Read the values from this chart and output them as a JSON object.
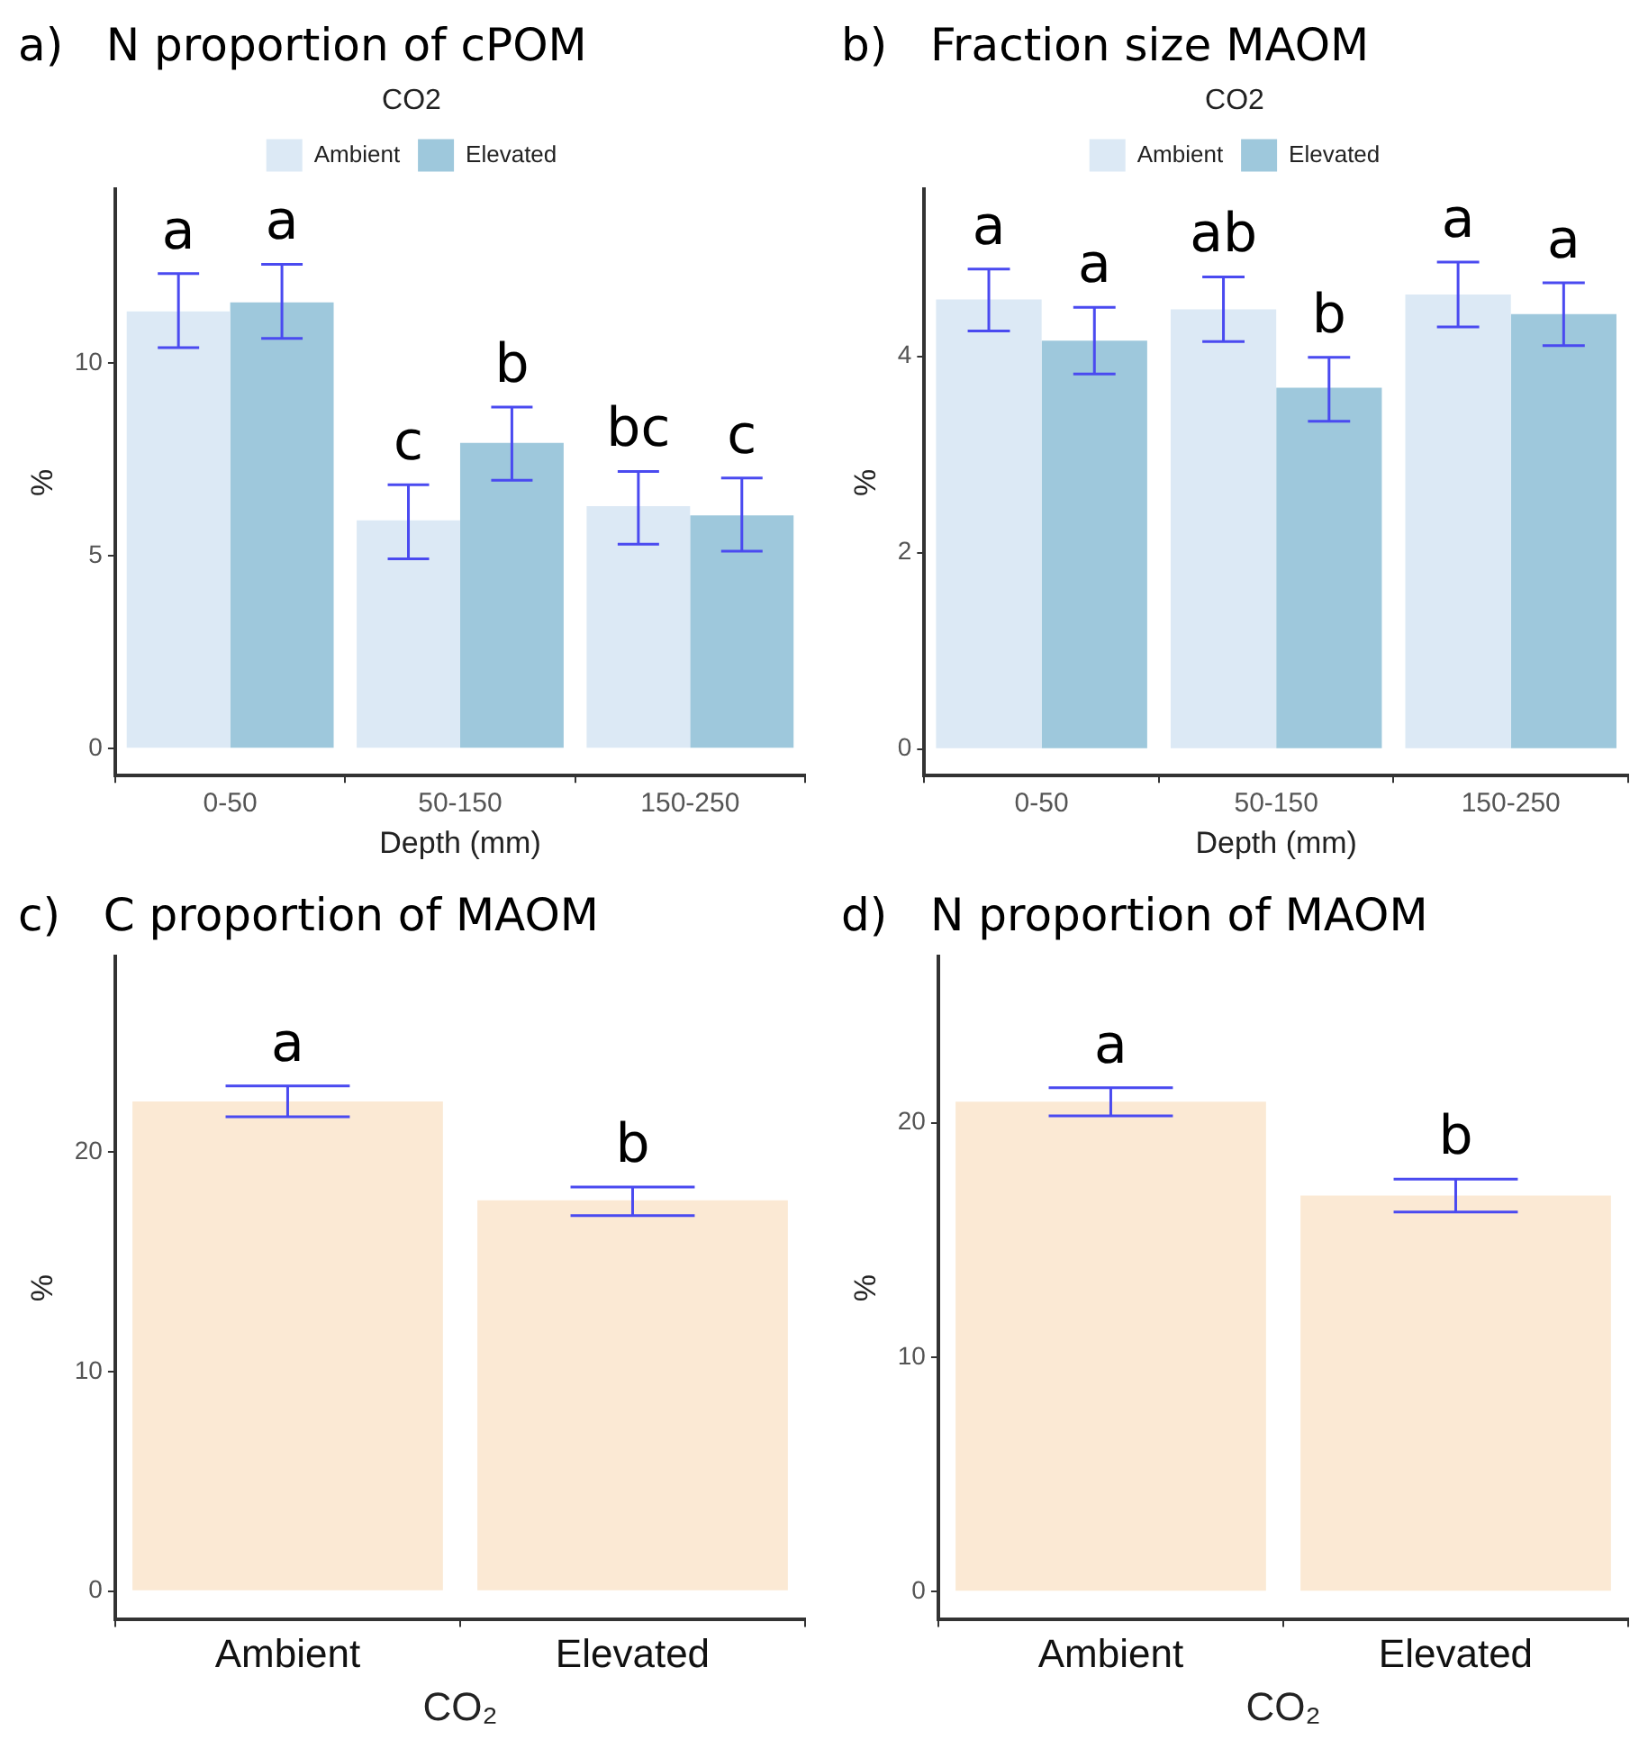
{
  "chart_data": [
    {
      "type": "bar",
      "title": "a)   N proportion of cPOM",
      "xlabel": "Depth (mm)",
      "ylabel": "%",
      "legend_title": "CO2",
      "legend": "top",
      "categories": [
        "0-50",
        "50-150",
        "150-250"
      ],
      "series": [
        {
          "name": "Ambient",
          "color": "#dce9f5",
          "values": [
            11.34,
            5.92,
            6.29
          ],
          "errors": [
            [
              10.4,
              12.32
            ],
            [
              4.92,
              6.84
            ],
            [
              5.3,
              7.19
            ]
          ]
        },
        {
          "name": "Elevated",
          "color": "#9ec8dc",
          "values": [
            11.57,
            7.93,
            6.05
          ],
          "errors": [
            [
              10.64,
              12.56
            ],
            [
              6.96,
              8.86
            ],
            [
              5.12,
              7.02
            ]
          ]
        }
      ],
      "ylim": [
        -0.7,
        14.5
      ],
      "yticks": [
        0,
        5,
        10
      ],
      "annotations": [
        "a",
        "a",
        "c",
        "b",
        "bc",
        "c"
      ]
    },
    {
      "type": "bar",
      "title": "b)   Fraction size MAOM",
      "xlabel": "Depth (mm)",
      "ylabel": "%",
      "legend_title": "CO2",
      "legend": "top",
      "categories": [
        "0-50",
        "50-150",
        "150-250"
      ],
      "series": [
        {
          "name": "Ambient",
          "color": "#dce9f5",
          "values": [
            4.58,
            4.48,
            4.63
          ],
          "errors": [
            [
              4.26,
              4.89
            ],
            [
              4.15,
              4.81
            ],
            [
              4.3,
              4.96
            ]
          ]
        },
        {
          "name": "Elevated",
          "color": "#9ec8dc",
          "values": [
            4.16,
            3.68,
            4.43
          ],
          "errors": [
            [
              3.82,
              4.5
            ],
            [
              3.34,
              3.99
            ],
            [
              4.11,
              4.75
            ]
          ]
        }
      ],
      "ylim": [
        -0.27,
        5.7
      ],
      "yticks": [
        0,
        2,
        4
      ],
      "annotations": [
        "a",
        "a",
        "ab",
        "b",
        "a",
        "a"
      ]
    },
    {
      "type": "bar",
      "title": "c)   C proportion of MAOM",
      "xlabel": "CO₂",
      "ylabel": "%",
      "categories": [
        "Ambient",
        "Elevated"
      ],
      "series": [
        {
          "color": "#fbe9d4",
          "values": [
            22.3,
            17.8
          ],
          "errors": [
            [
              21.6,
              23.0
            ],
            [
              17.1,
              18.4
            ]
          ]
        }
      ],
      "ylim": [
        -1.3,
        28.9
      ],
      "yticks": [
        0,
        10,
        20
      ],
      "annotations": [
        "a",
        "b"
      ]
    },
    {
      "type": "bar",
      "title": "d)   N proportion of MAOM",
      "xlabel": "CO₂",
      "ylabel": "%",
      "categories": [
        "Ambient",
        "Elevated"
      ],
      "series": [
        {
          "color": "#fbe9d4",
          "values": [
            20.9,
            16.9
          ],
          "errors": [
            [
              20.3,
              21.5
            ],
            [
              16.2,
              17.6
            ]
          ]
        }
      ],
      "ylim": [
        -1.2,
        27.1
      ],
      "yticks": [
        0,
        10,
        20
      ],
      "annotations": [
        "a",
        "b"
      ]
    }
  ]
}
